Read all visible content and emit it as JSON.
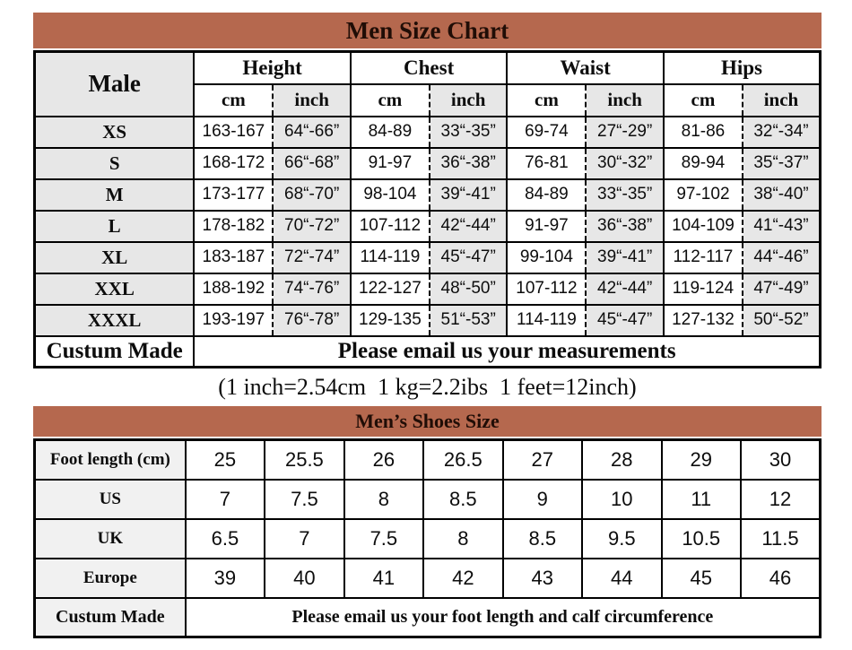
{
  "colors": {
    "bar_background": "#b5684e",
    "bar_text": "#200d06",
    "gray_cell": "#e7e7e7",
    "label_gray": "#f1f1f1",
    "border": "#000000"
  },
  "men_size_chart": {
    "title": "Men Size Chart",
    "corner_label": "Male",
    "column_groups": [
      "Height",
      "Chest",
      "Waist",
      "Hips"
    ],
    "unit_headers": [
      "cm",
      "inch"
    ],
    "rows": [
      {
        "size": "XS",
        "cells": [
          "163-167",
          "64“-66”",
          "84-89",
          "33“-35”",
          "69-74",
          "27“-29”",
          "81-86",
          "32“-34”"
        ]
      },
      {
        "size": "S",
        "cells": [
          "168-172",
          "66“-68”",
          "91-97",
          "36“-38”",
          "76-81",
          "30“-32”",
          "89-94",
          "35“-37”"
        ]
      },
      {
        "size": "M",
        "cells": [
          "173-177",
          "68“-70”",
          "98-104",
          "39“-41”",
          "84-89",
          "33“-35”",
          "97-102",
          "38“-40”"
        ]
      },
      {
        "size": "L",
        "cells": [
          "178-182",
          "70“-72”",
          "107-112",
          "42“-44”",
          "91-97",
          "36“-38”",
          "104-109",
          "41“-43”"
        ]
      },
      {
        "size": "XL",
        "cells": [
          "183-187",
          "72“-74”",
          "114-119",
          "45“-47”",
          "99-104",
          "39“-41”",
          "112-117",
          "44“-46”"
        ]
      },
      {
        "size": "XXL",
        "cells": [
          "188-192",
          "74“-76”",
          "122-127",
          "48“-50”",
          "107-112",
          "42“-44”",
          "119-124",
          "47“-49”"
        ]
      },
      {
        "size": "XXXL",
        "cells": [
          "193-197",
          "76“-78”",
          "129-135",
          "51“-53”",
          "114-119",
          "45“-47”",
          "127-132",
          "50“-52”"
        ]
      }
    ],
    "custom_row": {
      "label": "Custum Made",
      "message": "Please email us your measurements"
    }
  },
  "conversion_note": "(1 inch=2.54cm  1 kg=2.2ibs  1 feet=12inch)",
  "shoes_chart": {
    "title": "Men’s Shoes Size",
    "rows": [
      {
        "label": "Foot length (cm)",
        "values": [
          "25",
          "25.5",
          "26",
          "26.5",
          "27",
          "28",
          "29",
          "30"
        ]
      },
      {
        "label": "US",
        "values": [
          "7",
          "7.5",
          "8",
          "8.5",
          "9",
          "10",
          "11",
          "12"
        ]
      },
      {
        "label": "UK",
        "values": [
          "6.5",
          "7",
          "7.5",
          "8",
          "8.5",
          "9.5",
          "10.5",
          "11.5"
        ]
      },
      {
        "label": "Europe",
        "values": [
          "39",
          "40",
          "41",
          "42",
          "43",
          "44",
          "45",
          "46"
        ]
      }
    ],
    "custom_row": {
      "label": "Custum Made",
      "message": "Please email us your foot length and calf circumference"
    }
  }
}
